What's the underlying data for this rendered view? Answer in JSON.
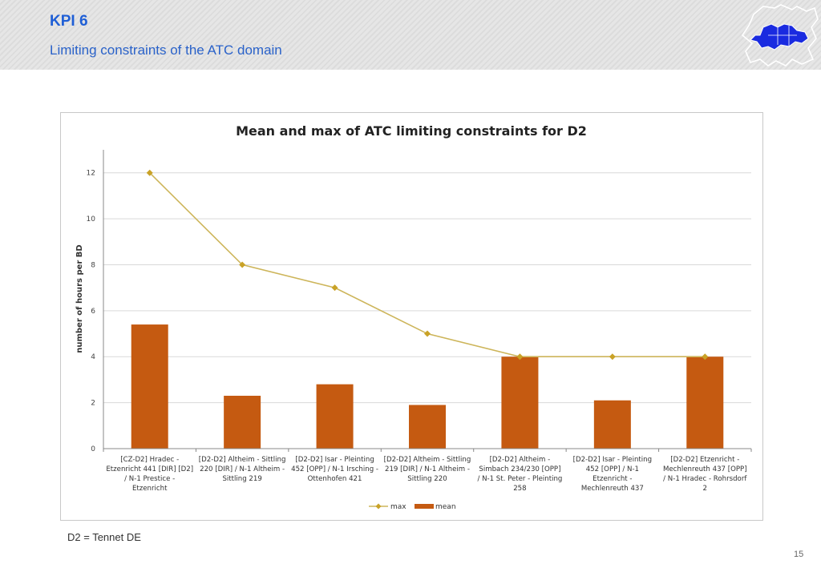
{
  "slide": {
    "title": "KPI 6",
    "subtitle": "Limiting constraints of the ATC domain",
    "footnote": "D2 = Tennet DE",
    "page_number": "15"
  },
  "colors": {
    "header_text": "#1f5fd6",
    "max_line": "#cdb55a",
    "max_marker": "#c9a227",
    "mean_bar": "#c55a11",
    "grid": "#d9d9d9",
    "logo_blue": "#1a2be0"
  },
  "chart_data": {
    "type": "bar",
    "title": "Mean and max of ATC limiting constraints for D2",
    "ylabel": "number of hours per BD",
    "xlabel": "",
    "ylim": [
      0,
      13
    ],
    "yticks": [
      0,
      2,
      4,
      6,
      8,
      10,
      12
    ],
    "grid": true,
    "legend_position": "bottom",
    "categories": [
      [
        "[CZ-D2] Hradec -",
        "Etzenricht 441 [DIR] [D2]",
        "/ N-1 Prestice -",
        "Etzenricht"
      ],
      [
        "[D2-D2] Altheim - Sittling",
        "220 [DIR] / N-1 Altheim -",
        "Sittling 219"
      ],
      [
        "[D2-D2] Isar - Pleinting",
        "452 [OPP] / N-1 Irsching -",
        "Ottenhofen 421"
      ],
      [
        "[D2-D2] Altheim - Sittling",
        "219 [DIR] / N-1 Altheim -",
        "Sittling 220"
      ],
      [
        "[D2-D2] Altheim -",
        "Simbach 234/230 [OPP]",
        "/ N-1 St. Peter - Pleinting",
        "258"
      ],
      [
        "[D2-D2] Isar - Pleinting",
        "452 [OPP] / N-1",
        "Etzenricht -",
        "Mechlenreuth 437"
      ],
      [
        "[D2-D2] Etzenricht -",
        "Mechlenreuth 437 [OPP]",
        "/ N-1 Hradec - Rohrsdorf",
        "2"
      ]
    ],
    "series": [
      {
        "name": "max",
        "kind": "line",
        "values": [
          12,
          8,
          7,
          5,
          4,
          4,
          4
        ]
      },
      {
        "name": "mean",
        "kind": "bar",
        "values": [
          5.4,
          2.3,
          2.8,
          1.9,
          4.0,
          2.1,
          4.0
        ]
      }
    ]
  }
}
